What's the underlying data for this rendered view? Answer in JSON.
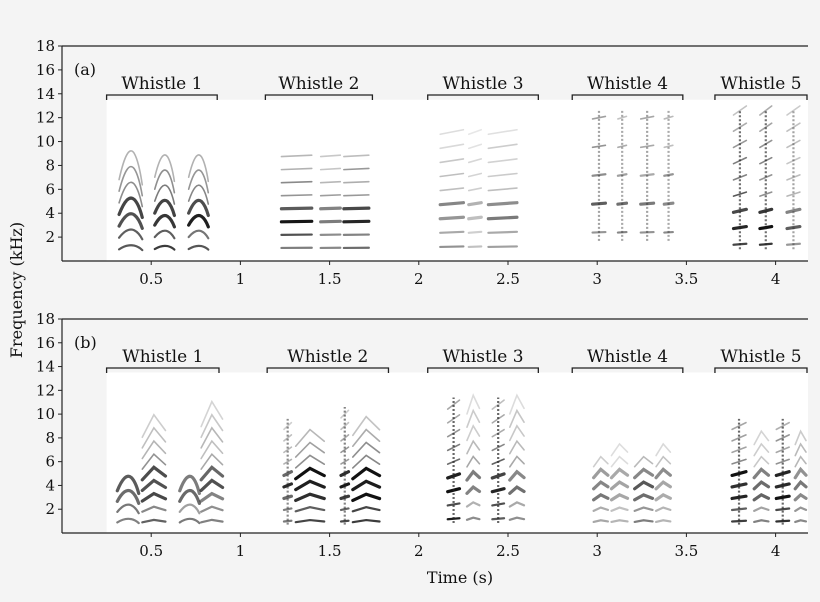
{
  "chart_data": [
    {
      "type": "spectrogram",
      "panel_label": "(a)",
      "ylabel": "Frequency (kHz)",
      "xlabel": "",
      "xlim": [
        0,
        4.2
      ],
      "ylim": [
        0,
        18
      ],
      "xticks": [
        "0.5",
        "1",
        "1.5",
        "2",
        "2.5",
        "3",
        "3.5",
        "4"
      ],
      "yticks": [
        "2",
        "4",
        "6",
        "8",
        "10",
        "12",
        "14",
        "16",
        "18"
      ],
      "spectrogram_area": {
        "x": [
          0.25,
          4.2
        ],
        "y": [
          0,
          13.5
        ]
      },
      "whistles": [
        {
          "label": "Whistle 1",
          "span": [
            0.25,
            0.87
          ],
          "units": [
            {
              "x0": 0.32,
              "x1": 0.45,
              "f0": 1.1,
              "harmonics": 7,
              "slope": 0.9,
              "strength": 0.8,
              "style": "curl"
            },
            {
              "x0": 0.52,
              "x1": 0.63,
              "f0": 1.1,
              "harmonics": 7,
              "slope": 0.7,
              "strength": 0.8,
              "style": "curl"
            },
            {
              "x0": 0.71,
              "x1": 0.82,
              "f0": 1.1,
              "harmonics": 7,
              "slope": 0.7,
              "strength": 0.8,
              "style": "curl"
            }
          ]
        },
        {
          "label": "Whistle 2",
          "span": [
            1.14,
            1.74
          ],
          "units": [
            {
              "x0": 1.23,
              "x1": 1.4,
              "f0": 1.1,
              "harmonics": 8,
              "slope": 0.1,
              "strength": 0.75,
              "style": "stack"
            },
            {
              "x0": 1.45,
              "x1": 1.56,
              "f0": 1.1,
              "harmonics": 8,
              "slope": 0.1,
              "strength": 0.55,
              "style": "stack"
            },
            {
              "x0": 1.58,
              "x1": 1.72,
              "f0": 1.1,
              "harmonics": 8,
              "slope": 0.1,
              "strength": 0.75,
              "style": "stack"
            }
          ]
        },
        {
          "label": "Whistle 3",
          "span": [
            2.05,
            2.67
          ],
          "units": [
            {
              "x0": 2.12,
              "x1": 2.25,
              "f0": 1.2,
              "harmonics": 9,
              "slope": 0.3,
              "strength": 0.45,
              "style": "stack"
            },
            {
              "x0": 2.28,
              "x1": 2.35,
              "f0": 1.2,
              "harmonics": 9,
              "slope": 0.3,
              "strength": 0.3,
              "style": "stack"
            },
            {
              "x0": 2.39,
              "x1": 2.55,
              "f0": 1.2,
              "harmonics": 9,
              "slope": 0.3,
              "strength": 0.45,
              "style": "stack"
            }
          ]
        },
        {
          "label": "Whistle 4",
          "span": [
            2.86,
            3.48
          ],
          "units": [
            {
              "x0": 2.95,
              "x1": 3.07,
              "f0": 2.4,
              "harmonics": 5,
              "slope": 0.2,
              "strength": 0.55,
              "style": "vert"
            },
            {
              "x0": 3.1,
              "x1": 3.18,
              "f0": 2.4,
              "harmonics": 5,
              "slope": 0.2,
              "strength": 0.5,
              "style": "vert"
            },
            {
              "x0": 3.22,
              "x1": 3.34,
              "f0": 2.4,
              "harmonics": 5,
              "slope": 0.2,
              "strength": 0.55,
              "style": "vert"
            },
            {
              "x0": 3.36,
              "x1": 3.44,
              "f0": 2.4,
              "harmonics": 5,
              "slope": 0.2,
              "strength": 0.5,
              "style": "vert"
            }
          ]
        },
        {
          "label": "Whistle 5",
          "span": [
            3.66,
            4.2
          ],
          "units": [
            {
              "x0": 3.74,
              "x1": 3.86,
              "f0": 1.4,
              "harmonics": 9,
              "slope": 0.4,
              "strength": 0.85,
              "style": "vert"
            },
            {
              "x0": 3.89,
              "x1": 4.0,
              "f0": 1.4,
              "harmonics": 9,
              "slope": 0.4,
              "strength": 0.85,
              "style": "vert"
            },
            {
              "x0": 4.04,
              "x1": 4.16,
              "f0": 1.4,
              "harmonics": 9,
              "slope": 0.4,
              "strength": 0.55,
              "style": "vert"
            }
          ]
        }
      ]
    },
    {
      "type": "spectrogram",
      "panel_label": "(b)",
      "ylabel": "",
      "xlabel": "Time (s)",
      "xlim": [
        0,
        4.2
      ],
      "ylim": [
        0,
        18
      ],
      "xticks": [
        "0.5",
        "1",
        "1.5",
        "2",
        "2.5",
        "3",
        "3.5",
        "4"
      ],
      "yticks": [
        "2",
        "4",
        "6",
        "8",
        "10",
        "12",
        "14",
        "16",
        "18"
      ],
      "spectrogram_area": {
        "x": [
          0.25,
          4.2
        ],
        "y": [
          0,
          13.5
        ]
      },
      "whistles": [
        {
          "label": "Whistle 1",
          "span": [
            0.25,
            0.88
          ],
          "units": [
            {
              "x0": 0.31,
              "x1": 0.43,
              "f0": 1.0,
              "harmonics": 4,
              "slope": 0.8,
              "strength": 0.7,
              "style": "curl"
            },
            {
              "x0": 0.45,
              "x1": 0.58,
              "f0": 1.0,
              "harmonics": 9,
              "slope": 0.6,
              "strength": 0.75,
              "style": "chev"
            },
            {
              "x0": 0.66,
              "x1": 0.77,
              "f0": 1.0,
              "harmonics": 4,
              "slope": 0.8,
              "strength": 0.6,
              "style": "curl"
            },
            {
              "x0": 0.78,
              "x1": 0.9,
              "f0": 1.0,
              "harmonics": 10,
              "slope": 0.6,
              "strength": 0.6,
              "style": "chev"
            }
          ]
        },
        {
          "label": "Whistle 2",
          "span": [
            1.15,
            1.83
          ],
          "units": [
            {
              "x0": 1.23,
              "x1": 1.3,
              "f0": 1.0,
              "harmonics": 9,
              "slope": 0.3,
              "strength": 0.7,
              "style": "vert"
            },
            {
              "x0": 1.31,
              "x1": 1.47,
              "f0": 1.0,
              "harmonics": 8,
              "slope": 0.5,
              "strength": 0.85,
              "style": "chev"
            },
            {
              "x0": 1.55,
              "x1": 1.62,
              "f0": 1.0,
              "harmonics": 10,
              "slope": 0.3,
              "strength": 0.75,
              "style": "vert"
            },
            {
              "x0": 1.63,
              "x1": 1.78,
              "f0": 1.0,
              "harmonics": 9,
              "slope": 0.5,
              "strength": 0.85,
              "style": "chev"
            }
          ]
        },
        {
          "label": "Whistle 3",
          "span": [
            2.05,
            2.67
          ],
          "units": [
            {
              "x0": 2.14,
              "x1": 2.25,
              "f0": 1.2,
              "harmonics": 9,
              "slope": 0.4,
              "strength": 0.9,
              "style": "vert"
            },
            {
              "x0": 2.27,
              "x1": 2.34,
              "f0": 1.2,
              "harmonics": 9,
              "slope": 0.5,
              "strength": 0.5,
              "style": "chev"
            },
            {
              "x0": 2.39,
              "x1": 2.5,
              "f0": 1.2,
              "harmonics": 9,
              "slope": 0.4,
              "strength": 0.9,
              "style": "vert"
            },
            {
              "x0": 2.51,
              "x1": 2.59,
              "f0": 1.2,
              "harmonics": 9,
              "slope": 0.5,
              "strength": 0.5,
              "style": "chev"
            }
          ]
        },
        {
          "label": "Whistle 4",
          "span": [
            2.86,
            3.48
          ],
          "units": [
            {
              "x0": 2.98,
              "x1": 3.06,
              "f0": 1.0,
              "harmonics": 6,
              "slope": 0.4,
              "strength": 0.45,
              "style": "chev"
            },
            {
              "x0": 3.08,
              "x1": 3.17,
              "f0": 1.0,
              "harmonics": 7,
              "slope": 0.4,
              "strength": 0.35,
              "style": "chev"
            },
            {
              "x0": 3.21,
              "x1": 3.31,
              "f0": 1.0,
              "harmonics": 6,
              "slope": 0.4,
              "strength": 0.55,
              "style": "chev"
            },
            {
              "x0": 3.33,
              "x1": 3.41,
              "f0": 1.0,
              "harmonics": 7,
              "slope": 0.4,
              "strength": 0.4,
              "style": "chev"
            }
          ]
        },
        {
          "label": "Whistle 5",
          "span": [
            3.66,
            4.2
          ],
          "units": [
            {
              "x0": 3.73,
              "x1": 3.86,
              "f0": 1.0,
              "harmonics": 9,
              "slope": 0.3,
              "strength": 0.9,
              "style": "vert"
            },
            {
              "x0": 3.88,
              "x1": 3.96,
              "f0": 1.0,
              "harmonics": 8,
              "slope": 0.4,
              "strength": 0.5,
              "style": "chev"
            },
            {
              "x0": 3.98,
              "x1": 4.1,
              "f0": 1.0,
              "harmonics": 9,
              "slope": 0.3,
              "strength": 0.9,
              "style": "vert"
            },
            {
              "x0": 4.11,
              "x1": 4.2,
              "f0": 1.0,
              "harmonics": 8,
              "slope": 0.4,
              "strength": 0.5,
              "style": "chev"
            }
          ]
        }
      ]
    }
  ]
}
